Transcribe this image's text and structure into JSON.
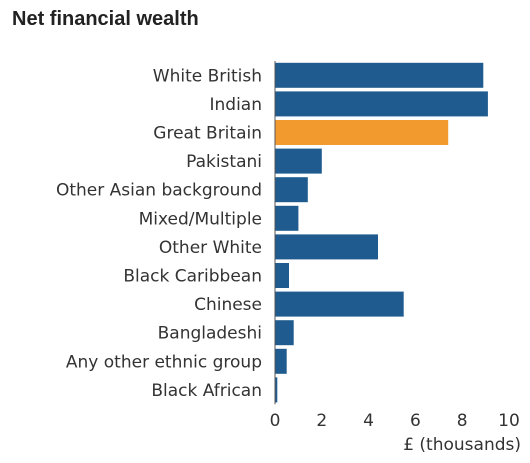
{
  "chart_data": {
    "type": "bar",
    "orientation": "horizontal",
    "title": "Net financial wealth",
    "xlabel": "£ (thousands)",
    "ylabel": "",
    "xlim": [
      0,
      10
    ],
    "xticks": [
      "0",
      "2",
      "4",
      "6",
      "8",
      "10"
    ],
    "grid": false,
    "categories": [
      "White British",
      "Indian",
      "Great Britain",
      "Pakistani",
      "Other Asian background",
      "Mixed/Multiple",
      "Other White",
      "Black Caribbean",
      "Chinese",
      "Bangladeshi",
      "Any other ethnic group",
      "Black African"
    ],
    "values": [
      8.9,
      9.1,
      7.4,
      2.0,
      1.4,
      1.0,
      4.4,
      0.6,
      5.5,
      0.8,
      0.5,
      0.1
    ],
    "colors": [
      "#1f5b8e",
      "#1f5b8e",
      "#f39a2e",
      "#1f5b8e",
      "#1f5b8e",
      "#1f5b8e",
      "#1f5b8e",
      "#1f5b8e",
      "#1f5b8e",
      "#1f5b8e",
      "#1f5b8e",
      "#1f5b8e"
    ]
  }
}
